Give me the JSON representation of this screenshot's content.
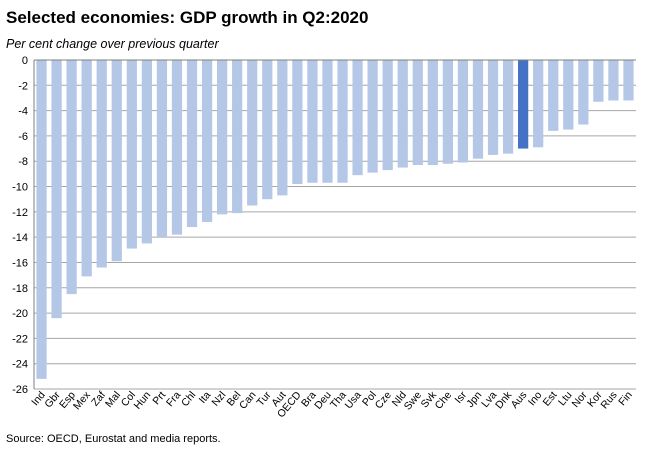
{
  "chart_data": {
    "type": "bar",
    "title": "Selected economies: GDP growth in Q2:2020",
    "subtitle": "Per cent change over previous quarter",
    "source": "Source: OECD, Eurostat and media reports.",
    "xlabel": "",
    "ylabel": "",
    "ylim": [
      -26,
      0
    ],
    "yticks": [
      0,
      -2,
      -4,
      -6,
      -8,
      -10,
      -12,
      -14,
      -16,
      -18,
      -20,
      -22,
      -24,
      -26
    ],
    "grid": true,
    "legend": "none",
    "colors": {
      "bar": "#b4c7e7",
      "highlight": "#4472c4",
      "grid": "#a6a6a6"
    },
    "highlight": "Aus",
    "categories": [
      "Ind",
      "Gbr",
      "Esp",
      "Mex",
      "Zaf",
      "Mal",
      "Col",
      "Hun",
      "Prt",
      "Fra",
      "Chl",
      "Ita",
      "Nzl",
      "Bel",
      "Can",
      "Tur",
      "Aut",
      "OECD",
      "Bra",
      "Deu",
      "Tha",
      "Usa",
      "Pol",
      "Cze",
      "Nld",
      "Swe",
      "Svk",
      "Che",
      "Isr",
      "Jpn",
      "Lva",
      "Dnk",
      "Aus",
      "Ino",
      "Est",
      "Ltu",
      "Nor",
      "Kor",
      "Rus",
      "Fin"
    ],
    "values": [
      -25.2,
      -20.4,
      -18.5,
      -17.1,
      -16.4,
      -15.9,
      -14.9,
      -14.5,
      -14.0,
      -13.8,
      -13.2,
      -12.8,
      -12.2,
      -12.1,
      -11.5,
      -11.0,
      -10.7,
      -9.8,
      -9.7,
      -9.7,
      -9.7,
      -9.1,
      -8.9,
      -8.7,
      -8.5,
      -8.3,
      -8.3,
      -8.2,
      -8.1,
      -7.8,
      -7.5,
      -7.4,
      -7.0,
      -6.9,
      -5.6,
      -5.5,
      -5.1,
      -3.3,
      -3.2,
      -3.2
    ]
  }
}
